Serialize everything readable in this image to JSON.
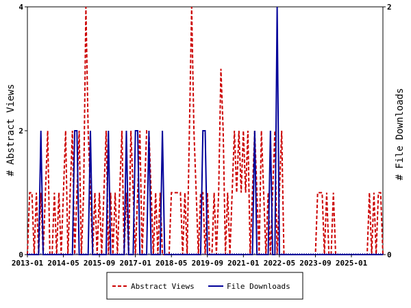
{
  "chart_data": {
    "type": "line",
    "ylabel_left": "# Abstract Views",
    "ylabel_right": "# File Downloads",
    "ylim_left": [
      0,
      4
    ],
    "ylim_right": [
      0,
      2
    ],
    "yticks_left": [
      "0",
      "2",
      "4"
    ],
    "yticks_right": [
      "0",
      "2"
    ],
    "x_range": [
      "2013-01",
      "2026-03"
    ],
    "xticks": [
      "2013-01",
      "2014-05",
      "2015-09",
      "2017-01",
      "2018-05",
      "2019-09",
      "2021-01",
      "2022-05",
      "2023-09",
      "2025-01"
    ],
    "grid": false,
    "legend_position": "bottom",
    "series": [
      {
        "name": "Abstract Views",
        "axis": "left",
        "color": "#cc0000",
        "style": "dashed",
        "values": [
          [
            "2013-01",
            0
          ],
          [
            "2013-02",
            1
          ],
          [
            "2013-03",
            1
          ],
          [
            "2013-04",
            0
          ],
          [
            "2013-05",
            1
          ],
          [
            "2013-06",
            0
          ],
          [
            "2013-07",
            1
          ],
          [
            "2013-08",
            0
          ],
          [
            "2013-09",
            1
          ],
          [
            "2013-10",
            2
          ],
          [
            "2013-11",
            0
          ],
          [
            "2013-12",
            0
          ],
          [
            "2014-01",
            1
          ],
          [
            "2014-02",
            0
          ],
          [
            "2014-03",
            1
          ],
          [
            "2014-04",
            0
          ],
          [
            "2014-05",
            1
          ],
          [
            "2014-06",
            2
          ],
          [
            "2014-07",
            0
          ],
          [
            "2014-08",
            1
          ],
          [
            "2014-09",
            2
          ],
          [
            "2014-10",
            0
          ],
          [
            "2014-11",
            1
          ],
          [
            "2014-12",
            2
          ],
          [
            "2015-01",
            0
          ],
          [
            "2015-02",
            1
          ],
          [
            "2015-03",
            4
          ],
          [
            "2015-04",
            2
          ],
          [
            "2015-05",
            1
          ],
          [
            "2015-06",
            0
          ],
          [
            "2015-07",
            1
          ],
          [
            "2015-08",
            0
          ],
          [
            "2015-09",
            1
          ],
          [
            "2015-10",
            0
          ],
          [
            "2015-11",
            1
          ],
          [
            "2015-12",
            2
          ],
          [
            "2016-01",
            0
          ],
          [
            "2016-02",
            1
          ],
          [
            "2016-03",
            0
          ],
          [
            "2016-04",
            1
          ],
          [
            "2016-05",
            0
          ],
          [
            "2016-06",
            1
          ],
          [
            "2016-07",
            2
          ],
          [
            "2016-08",
            0
          ],
          [
            "2016-09",
            1
          ],
          [
            "2016-10",
            0
          ],
          [
            "2016-11",
            2
          ],
          [
            "2016-12",
            1
          ],
          [
            "2017-01",
            0
          ],
          [
            "2017-02",
            1
          ],
          [
            "2017-03",
            2
          ],
          [
            "2017-04",
            0
          ],
          [
            "2017-05",
            1
          ],
          [
            "2017-06",
            2
          ],
          [
            "2017-07",
            2
          ],
          [
            "2017-08",
            1
          ],
          [
            "2017-09",
            0
          ],
          [
            "2017-10",
            1
          ],
          [
            "2017-11",
            0
          ],
          [
            "2017-12",
            1
          ],
          [
            "2018-01",
            0
          ],
          [
            "2018-02",
            0
          ],
          [
            "2018-03",
            0
          ],
          [
            "2018-04",
            0
          ],
          [
            "2018-05",
            1
          ],
          [
            "2018-06",
            1
          ],
          [
            "2018-07",
            1
          ],
          [
            "2018-08",
            1
          ],
          [
            "2018-09",
            1
          ],
          [
            "2018-10",
            0
          ],
          [
            "2018-11",
            1
          ],
          [
            "2018-12",
            0
          ],
          [
            "2019-01",
            2
          ],
          [
            "2019-02",
            4
          ],
          [
            "2019-03",
            2
          ],
          [
            "2019-04",
            1
          ],
          [
            "2019-05",
            0
          ],
          [
            "2019-06",
            1
          ],
          [
            "2019-07",
            1
          ],
          [
            "2019-08",
            0
          ],
          [
            "2019-09",
            1
          ],
          [
            "2019-10",
            0
          ],
          [
            "2019-11",
            0
          ],
          [
            "2019-12",
            1
          ],
          [
            "2020-01",
            0
          ],
          [
            "2020-02",
            1
          ],
          [
            "2020-03",
            3
          ],
          [
            "2020-04",
            2
          ],
          [
            "2020-05",
            0
          ],
          [
            "2020-06",
            1
          ],
          [
            "2020-07",
            0
          ],
          [
            "2020-08",
            1
          ],
          [
            "2020-09",
            2
          ],
          [
            "2020-10",
            1
          ],
          [
            "2020-11",
            2
          ],
          [
            "2020-12",
            1
          ],
          [
            "2021-01",
            2
          ],
          [
            "2021-02",
            1
          ],
          [
            "2021-03",
            2
          ],
          [
            "2021-04",
            0
          ],
          [
            "2021-05",
            1
          ],
          [
            "2021-06",
            2
          ],
          [
            "2021-07",
            1
          ],
          [
            "2021-08",
            0
          ],
          [
            "2021-09",
            2
          ],
          [
            "2021-10",
            1
          ],
          [
            "2021-11",
            0
          ],
          [
            "2021-12",
            1
          ],
          [
            "2022-01",
            0
          ],
          [
            "2022-02",
            1
          ],
          [
            "2022-03",
            2
          ],
          [
            "2022-04",
            0
          ],
          [
            "2022-05",
            1
          ],
          [
            "2022-06",
            2
          ],
          [
            "2022-07",
            0
          ],
          [
            "2022-08",
            0
          ],
          [
            "2022-09",
            0
          ],
          [
            "2022-10",
            0
          ],
          [
            "2022-11",
            0
          ],
          [
            "2022-12",
            0
          ],
          [
            "2023-01",
            0
          ],
          [
            "2023-02",
            0
          ],
          [
            "2023-03",
            0
          ],
          [
            "2023-04",
            0
          ],
          [
            "2023-05",
            0
          ],
          [
            "2023-06",
            0
          ],
          [
            "2023-07",
            0
          ],
          [
            "2023-08",
            0
          ],
          [
            "2023-09",
            0
          ],
          [
            "2023-10",
            1
          ],
          [
            "2023-11",
            1
          ],
          [
            "2023-12",
            1
          ],
          [
            "2024-01",
            0
          ],
          [
            "2024-02",
            1
          ],
          [
            "2024-03",
            0
          ],
          [
            "2024-04",
            0
          ],
          [
            "2024-05",
            1
          ],
          [
            "2024-06",
            0
          ],
          [
            "2024-07",
            0
          ],
          [
            "2024-08",
            0
          ],
          [
            "2024-09",
            0
          ],
          [
            "2024-10",
            0
          ],
          [
            "2024-11",
            0
          ],
          [
            "2024-12",
            0
          ],
          [
            "2025-01",
            0
          ],
          [
            "2025-02",
            0
          ],
          [
            "2025-03",
            0
          ],
          [
            "2025-04",
            0
          ],
          [
            "2025-05",
            0
          ],
          [
            "2025-06",
            0
          ],
          [
            "2025-07",
            0
          ],
          [
            "2025-08",
            0
          ],
          [
            "2025-09",
            1
          ],
          [
            "2025-10",
            0
          ],
          [
            "2025-11",
            1
          ],
          [
            "2025-12",
            0
          ],
          [
            "2026-01",
            1
          ],
          [
            "2026-02",
            1
          ]
        ]
      },
      {
        "name": "File Downloads",
        "axis": "right",
        "color": "#000099",
        "style": "solid",
        "values": [
          [
            "2013-07",
            1
          ],
          [
            "2014-10",
            1
          ],
          [
            "2014-11",
            1
          ],
          [
            "2015-05",
            1
          ],
          [
            "2016-01",
            1
          ],
          [
            "2016-09",
            1
          ],
          [
            "2017-01",
            1
          ],
          [
            "2017-02",
            1
          ],
          [
            "2017-07",
            1
          ],
          [
            "2018-01",
            1
          ],
          [
            "2019-07",
            1
          ],
          [
            "2019-08",
            1
          ],
          [
            "2021-06",
            1
          ],
          [
            "2022-01",
            1
          ],
          [
            "2022-04",
            2
          ]
        ]
      }
    ]
  }
}
